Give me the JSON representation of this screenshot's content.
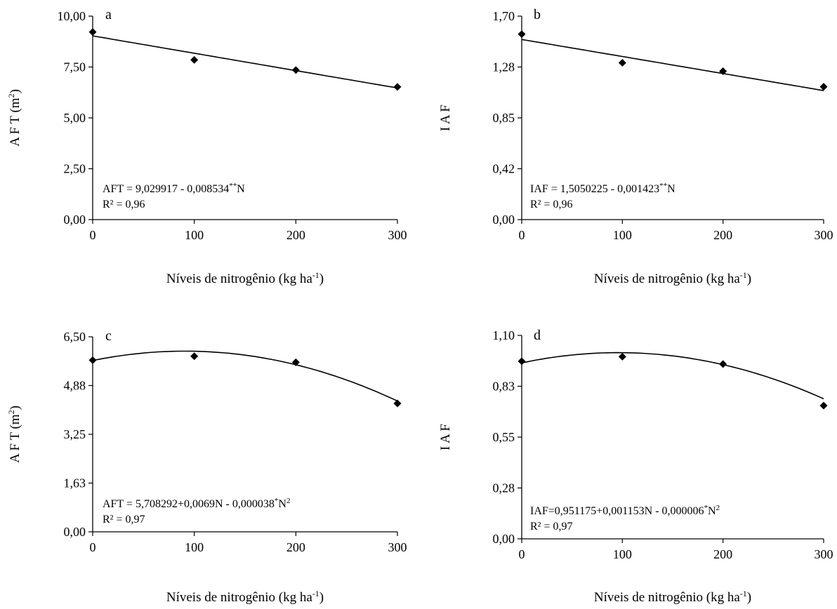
{
  "chart_data": [
    {
      "panel": "a",
      "type": "scatter",
      "xlabel": "Níveis de nitrogênio (kg ha-1)",
      "ylabel": "A F T (m2)",
      "xticks": [
        "0",
        "100",
        "200",
        "300"
      ],
      "yticks": [
        "0,00",
        "2,50",
        "5,00",
        "7,50",
        "10,00"
      ],
      "xlim": [
        0,
        300
      ],
      "ylim": [
        0,
        10
      ],
      "x": [
        0,
        100,
        200,
        300
      ],
      "y": [
        9.22,
        7.85,
        7.35,
        6.52
      ],
      "fit": {
        "kind": "linear",
        "coef": [
          9.029917,
          -0.008534,
          0
        ]
      },
      "equation": "AFT = 9,029917 - 0,008534**N",
      "r2": "R² = 0,96"
    },
    {
      "panel": "b",
      "type": "scatter",
      "xlabel": "Níveis de nitrogênio (kg ha-1)",
      "ylabel": "I A F",
      "xticks": [
        "0",
        "100",
        "200",
        "300"
      ],
      "yticks": [
        "0,00",
        "0,42",
        "0,85",
        "1,28",
        "1,70"
      ],
      "xlim": [
        0,
        300
      ],
      "ylim": [
        0,
        1.7
      ],
      "x": [
        0,
        100,
        200,
        300
      ],
      "y": [
        1.55,
        1.31,
        1.24,
        1.11
      ],
      "fit": {
        "kind": "linear",
        "coef": [
          1.5050225,
          -0.001423,
          0
        ]
      },
      "equation": "IAF = 1,5050225 - 0,001423**N",
      "r2": "R² = 0,96"
    },
    {
      "panel": "c",
      "type": "scatter",
      "xlabel": "Níveis de nitrogênio (kg ha-1)",
      "ylabel": "A F T (m2)",
      "xticks": [
        "0",
        "100",
        "200",
        "300"
      ],
      "yticks": [
        "0,00",
        "1,63",
        "3,25",
        "4,88",
        "6,50"
      ],
      "xlim": [
        0,
        300
      ],
      "ylim": [
        0,
        6.5
      ],
      "x": [
        0,
        100,
        200,
        300
      ],
      "y": [
        5.72,
        5.85,
        5.65,
        4.28
      ],
      "fit": {
        "kind": "quadratic",
        "coef": [
          5.708292,
          0.0069,
          -3.8e-05
        ]
      },
      "equation": "AFT = 5,708292+0,0069N - 0,000038*N2",
      "r2": "R² = 0,97"
    },
    {
      "panel": "d",
      "type": "scatter",
      "xlabel": "Níveis de nitrogênio (kg ha-1)",
      "ylabel": "I A F",
      "xticks": [
        "0",
        "100",
        "200",
        "300"
      ],
      "yticks": [
        "0,00",
        "0,28",
        "0,55",
        "0,83",
        "1,10"
      ],
      "xlim": [
        0,
        300
      ],
      "ylim": [
        0,
        1.1
      ],
      "x": [
        0,
        100,
        200,
        300
      ],
      "y": [
        0.96,
        0.985,
        0.945,
        0.72
      ],
      "fit": {
        "kind": "quadratic",
        "coef": [
          0.951175,
          0.001153,
          -6e-06
        ]
      },
      "equation": "IAF=0,951175+0,001153N - 0,000006*N2",
      "r2": "R² = 0,97"
    }
  ]
}
